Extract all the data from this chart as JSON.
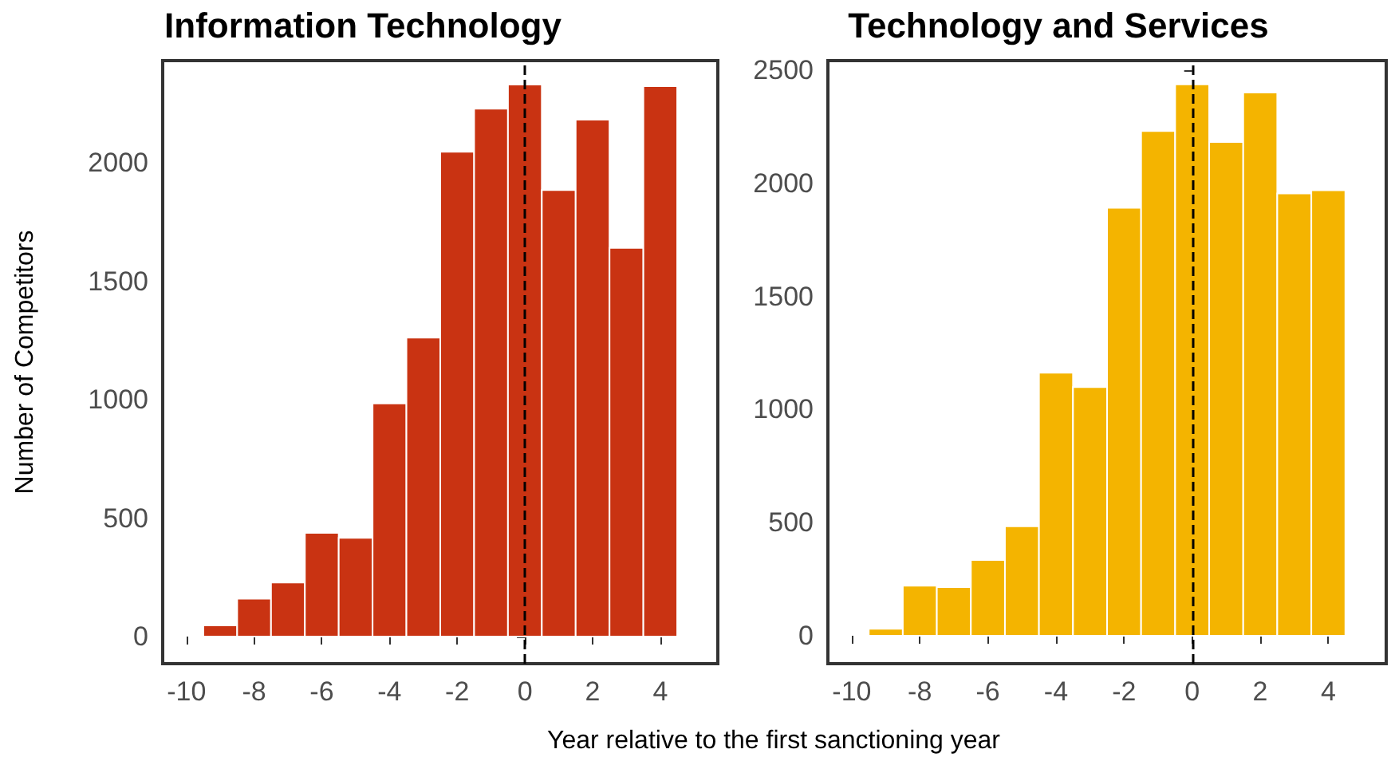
{
  "chart_data": [
    {
      "type": "histogram",
      "title": "Information Technology",
      "ylabel": "Number of Competitors",
      "xlabel": "Year relative to the first sanctioning year",
      "bins": [
        -9.5,
        -8.5,
        -7.5,
        -6.5,
        -5.5,
        -4.5,
        -3.5,
        -2.5,
        -1.5,
        -0.5,
        0.5,
        1.5,
        2.5,
        3.5,
        4.5
      ],
      "values": [
        47,
        160,
        228,
        438,
        417,
        985,
        1263,
        2048,
        2230,
        2332,
        1886,
        2184,
        1642,
        2325
      ],
      "color": "#c93312",
      "xlim": [
        -10.7,
        5.7
      ],
      "xticks": [
        -10,
        -8,
        -6,
        -4,
        -2,
        0,
        2,
        4
      ],
      "ylim": [
        -115,
        2433
      ],
      "yticks": [
        0,
        500,
        1000,
        1500,
        2000
      ],
      "grid": false,
      "ref_lines": [
        {
          "axis": "x",
          "value": 0,
          "color": "#000000",
          "line_style": "dashed"
        }
      ]
    },
    {
      "type": "histogram",
      "title": "Technology and Services",
      "bins": [
        -9.5,
        -8.5,
        -7.5,
        -6.5,
        -5.5,
        -4.5,
        -3.5,
        -2.5,
        -1.5,
        -0.5,
        0.5,
        1.5,
        2.5,
        3.5,
        4.5
      ],
      "values": [
        31,
        222,
        215,
        335,
        484,
        1163,
        1099,
        1892,
        2231,
        2437,
        2182,
        2401,
        1955,
        1969
      ],
      "color": "#f4b400",
      "xlim": [
        -10.7,
        5.7
      ],
      "xticks": [
        -10,
        -8,
        -6,
        -4,
        -2,
        0,
        2,
        4
      ],
      "ylim": [
        -123,
        2542
      ],
      "yticks": [
        0,
        500,
        1000,
        1500,
        2000,
        2500
      ],
      "grid": false,
      "ref_lines": [
        {
          "axis": "x",
          "value": 0,
          "color": "#000000",
          "line_style": "dashed"
        }
      ]
    }
  ]
}
